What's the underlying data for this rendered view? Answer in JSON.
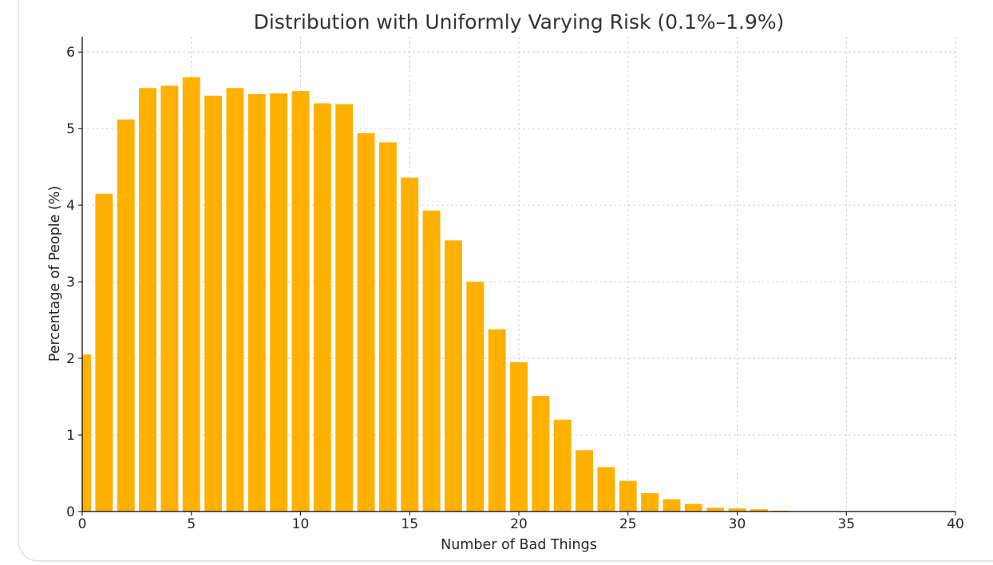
{
  "chart_data": {
    "type": "bar",
    "title": "Distribution with Uniformly Varying Risk (0.1%–1.9%)",
    "xlabel": "Number of Bad Things",
    "ylabel": "Percentage of People (%)",
    "x": [
      0,
      1,
      2,
      3,
      4,
      5,
      6,
      7,
      8,
      9,
      10,
      11,
      12,
      13,
      14,
      15,
      16,
      17,
      18,
      19,
      20,
      21,
      22,
      23,
      24,
      25,
      26,
      27,
      28,
      29,
      30,
      31,
      32,
      33,
      34,
      35,
      36,
      37,
      38,
      39
    ],
    "values": [
      2.05,
      4.15,
      5.12,
      5.53,
      5.56,
      5.67,
      5.43,
      5.53,
      5.45,
      5.46,
      5.49,
      5.33,
      5.32,
      4.94,
      4.82,
      4.36,
      3.93,
      3.54,
      3.0,
      2.38,
      1.95,
      1.51,
      1.2,
      0.8,
      0.58,
      0.4,
      0.24,
      0.16,
      0.1,
      0.05,
      0.04,
      0.03,
      0.01,
      0.005,
      0,
      0,
      0,
      0,
      0,
      0
    ],
    "xlim": [
      0,
      40
    ],
    "ylim": [
      0,
      6.2
    ],
    "xticks": [
      0,
      5,
      10,
      15,
      20,
      25,
      30,
      35,
      40
    ],
    "yticks": [
      0,
      1,
      2,
      3,
      4,
      5,
      6
    ],
    "bar_color": "#ffb000",
    "grid": true,
    "legend": "none"
  }
}
